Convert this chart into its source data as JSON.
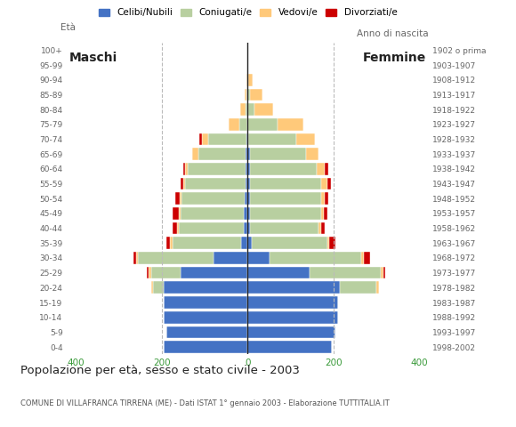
{
  "age_groups": [
    "0-4",
    "5-9",
    "10-14",
    "15-19",
    "20-24",
    "25-29",
    "30-34",
    "35-39",
    "40-44",
    "45-49",
    "50-54",
    "55-59",
    "60-64",
    "65-69",
    "70-74",
    "75-79",
    "80-84",
    "85-89",
    "90-94",
    "95-99",
    "100+"
  ],
  "birth_years": [
    "1998-2002",
    "1993-1997",
    "1988-1992",
    "1983-1987",
    "1978-1982",
    "1973-1977",
    "1968-1972",
    "1963-1967",
    "1958-1962",
    "1953-1957",
    "1948-1952",
    "1943-1947",
    "1938-1942",
    "1933-1937",
    "1928-1932",
    "1923-1927",
    "1918-1922",
    "1913-1917",
    "1908-1912",
    "1903-1907",
    "1902 o prima"
  ],
  "males": {
    "celibi": [
      195,
      190,
      195,
      195,
      195,
      155,
      80,
      15,
      10,
      10,
      8,
      5,
      5,
      5,
      2,
      0,
      0,
      0,
      0,
      0,
      0
    ],
    "coniugati": [
      0,
      0,
      0,
      0,
      25,
      70,
      175,
      160,
      150,
      145,
      145,
      140,
      135,
      110,
      90,
      20,
      5,
      2,
      0,
      0,
      0
    ],
    "vedovi": [
      0,
      0,
      0,
      0,
      5,
      5,
      5,
      5,
      5,
      5,
      5,
      5,
      5,
      15,
      15,
      25,
      12,
      5,
      2,
      0,
      0
    ],
    "divorziati": [
      0,
      0,
      0,
      0,
      0,
      5,
      5,
      10,
      10,
      15,
      10,
      5,
      5,
      0,
      5,
      0,
      0,
      0,
      0,
      0,
      0
    ]
  },
  "females": {
    "nubili": [
      195,
      205,
      210,
      210,
      215,
      145,
      50,
      10,
      5,
      5,
      5,
      5,
      5,
      5,
      2,
      0,
      0,
      0,
      0,
      0,
      0
    ],
    "coniugate": [
      0,
      0,
      0,
      0,
      85,
      165,
      215,
      175,
      160,
      165,
      165,
      165,
      155,
      130,
      110,
      70,
      15,
      5,
      2,
      0,
      0
    ],
    "vedove": [
      0,
      0,
      0,
      0,
      5,
      5,
      5,
      5,
      5,
      8,
      10,
      15,
      20,
      30,
      45,
      60,
      45,
      30,
      10,
      2,
      0
    ],
    "divorziate": [
      0,
      0,
      0,
      0,
      0,
      5,
      15,
      15,
      10,
      8,
      8,
      8,
      8,
      0,
      0,
      0,
      0,
      0,
      0,
      0,
      0
    ]
  },
  "colors": {
    "celibi": "#4472c4",
    "coniugati": "#b8cfa0",
    "vedovi": "#ffc97a",
    "divorziati": "#cc0000"
  },
  "legend_labels": [
    "Celibi/Nubili",
    "Coniugati/e",
    "Vedovi/e",
    "Divorziati/e"
  ],
  "title": "Popolazione per età, sesso e stato civile - 2003",
  "subtitle": "COMUNE DI VILLAFRANCA TIRRENA (ME) - Dati ISTAT 1° gennaio 2003 - Elaborazione TUTTITALIA.IT",
  "ylabel_left": "Età",
  "ylabel_right": "Anno di nascita",
  "xlabel_left": "Maschi",
  "xlabel_right": "Femmine",
  "xlim": 420,
  "background_color": "#ffffff",
  "grid_color": "#bbbbbb",
  "axis_color": "#666666",
  "tick_color": "#3a9a3a"
}
